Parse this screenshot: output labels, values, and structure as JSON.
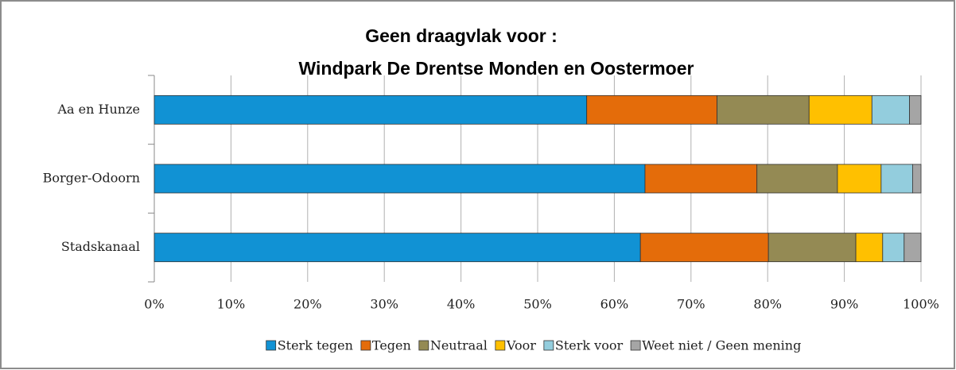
{
  "chart_data": {
    "type": "stacked_barh",
    "title": [
      "Geen draagvlak voor :",
      "Windpark  De Drentse Monden en Oostermoer"
    ],
    "categories": [
      "Aa en Hunze",
      "Borger-Odoorn",
      "Stadskanaal"
    ],
    "series": [
      {
        "name": "Sterk tegen",
        "color": "#1192d4",
        "values": [
          56.4,
          64.0,
          63.4
        ]
      },
      {
        "name": "Tegen",
        "color": "#e46c0a",
        "values": [
          17.0,
          14.6,
          16.7
        ]
      },
      {
        "name": "Neutraal",
        "color": "#948a54",
        "values": [
          12.0,
          10.5,
          11.4
        ]
      },
      {
        "name": "Voor",
        "color": "#ffc000",
        "values": [
          8.2,
          5.7,
          3.5
        ]
      },
      {
        "name": "Sterk voor",
        "color": "#93cddd",
        "values": [
          4.9,
          4.1,
          2.8
        ]
      },
      {
        "name": "Weet niet / Geen mening",
        "color": "#a5a5a5",
        "values": [
          1.5,
          1.1,
          2.2
        ]
      }
    ],
    "xlim": [
      0,
      100
    ],
    "xticks": [
      {
        "value": 0,
        "label": "0%"
      },
      {
        "value": 10,
        "label": "10%"
      },
      {
        "value": 20,
        "label": "20%"
      },
      {
        "value": 30,
        "label": "30%"
      },
      {
        "value": 40,
        "label": "40%"
      },
      {
        "value": 50,
        "label": "50%"
      },
      {
        "value": 60,
        "label": "60%"
      },
      {
        "value": 70,
        "label": "70%"
      },
      {
        "value": 80,
        "label": "80%"
      },
      {
        "value": 90,
        "label": "90%"
      },
      {
        "value": 100,
        "label": "100%"
      }
    ],
    "grid": true,
    "legend": "bottom"
  }
}
